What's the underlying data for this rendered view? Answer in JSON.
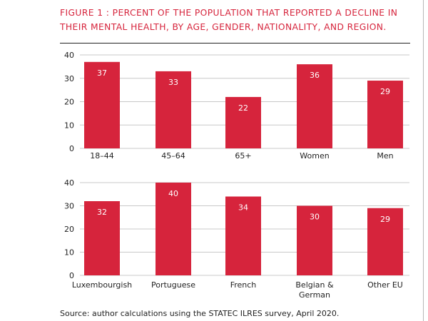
{
  "title": "FIGURE 1 : PERCENT OF THE POPULATION THAT REPORTED A DECLINE IN THEIR MENTAL HEALTH, BY AGE, GENDER, NATIONALITY, AND REGION.",
  "source": "Source: author calculations using the STATEC ILRES survey, April 2020.",
  "colors": {
    "bar": "#d6243c",
    "title": "#d6243c",
    "grid": "#c8c8c8",
    "label": "#ffffff"
  },
  "chart_data": [
    {
      "type": "bar",
      "categories": [
        "18–44",
        "45–64",
        "65+",
        "Women",
        "Men"
      ],
      "values": [
        37,
        33,
        22,
        36,
        29
      ],
      "ylim": [
        0,
        40
      ],
      "yticks": [
        0,
        10,
        20,
        30,
        40
      ],
      "grid": true
    },
    {
      "type": "bar",
      "categories": [
        "Luxembourgish",
        "Portuguese",
        "French",
        "Belgian &\nGerman",
        "Other EU"
      ],
      "values": [
        32,
        40,
        34,
        30,
        29
      ],
      "ylim": [
        0,
        40
      ],
      "yticks": [
        0,
        10,
        20,
        30,
        40
      ],
      "grid": true
    }
  ]
}
